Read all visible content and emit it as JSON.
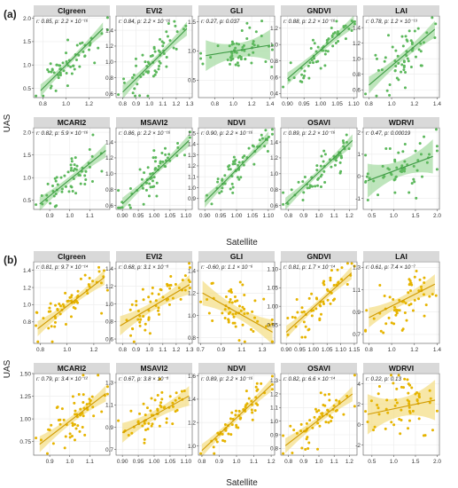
{
  "figure": {
    "panel_a_label": "(a)",
    "panel_b_label": "(b)",
    "y_axis_title": "UAS",
    "x_axis_title": "Satellite",
    "colors": {
      "a_point": "#5cb85c",
      "a_line": "#3f9b45",
      "a_band": "#a8dca6",
      "b_point": "#e6b400",
      "b_line": "#d19a00",
      "b_band": "#f4df8a",
      "strip": "#d9d9d9",
      "grid": "#ebebeb",
      "frame": "#555555"
    }
  },
  "chart_data": [
    {
      "group": "(a)",
      "type": "scatter",
      "color": "#5cb85c",
      "panels": [
        {
          "name": "CIgreen",
          "stats": "r: 0.85, p: 2.2 × 10⁻¹⁶",
          "r": 0.85,
          "xlim": [
            0.72,
            1.38
          ],
          "ylim": [
            0.3,
            2.05
          ],
          "xticks": [
            "0.8",
            "1.0",
            "1.2"
          ],
          "yticks": [
            "0.5",
            "1.0",
            "1.5",
            "2.0"
          ],
          "fit": [
            [
              0.78,
              0.45
            ],
            [
              1.32,
              1.78
            ]
          ],
          "band": 0.06
        },
        {
          "name": "EVI2",
          "stats": "r: 0.84, p: 2.2 × 10⁻¹⁶",
          "r": 0.84,
          "xlim": [
            0.75,
            1.32
          ],
          "ylim": [
            0.55,
            1.58
          ],
          "xticks": [
            "0.8",
            "0.9",
            "1.0",
            "1.1",
            "1.2",
            "1.3"
          ],
          "yticks": [
            "0.6",
            "0.8",
            "1.0",
            "1.2",
            "1.4"
          ],
          "fit": [
            [
              0.8,
              0.62
            ],
            [
              1.28,
              1.42
            ]
          ],
          "band": 0.04
        },
        {
          "name": "GLI",
          "stats": "r: 0.27, p: 0.037",
          "r": 0.27,
          "xlim": [
            0.62,
            1.45
          ],
          "ylim": [
            0.2,
            1.6
          ],
          "xticks": [
            "0.8",
            "1.0",
            "1.2",
            "1.4"
          ],
          "yticks": [
            "0.5",
            "1.0",
            "1.5"
          ],
          "fit": [
            [
              0.7,
              0.92
            ],
            [
              1.4,
              1.1
            ]
          ],
          "band": 0.12
        },
        {
          "name": "GNDVI",
          "stats": "r: 0.88, p: 2.2 × 10⁻¹⁶",
          "r": 0.88,
          "xlim": [
            0.88,
            1.11
          ],
          "ylim": [
            0.35,
            1.35
          ],
          "xticks": [
            "0.90",
            "0.95",
            "1.00",
            "1.05",
            "1.10"
          ],
          "yticks": [
            "0.4",
            "0.6",
            "0.8",
            "1.0",
            "1.2"
          ],
          "fit": [
            [
              0.9,
              0.58
            ],
            [
              1.1,
              1.28
            ]
          ],
          "band": 0.035
        },
        {
          "name": "LAI",
          "stats": "r: 0.78, p: 1.2 × 10⁻¹³",
          "r": 0.78,
          "xlim": [
            0.75,
            1.42
          ],
          "ylim": [
            0.5,
            1.55
          ],
          "xticks": [
            "0.8",
            "1.0",
            "1.2",
            "1.4"
          ],
          "yticks": [
            "0.6",
            "0.8",
            "1.0",
            "1.2",
            "1.4"
          ],
          "fit": [
            [
              0.8,
              0.66
            ],
            [
              1.38,
              1.38
            ]
          ],
          "band": 0.05
        },
        {
          "name": "MCARI2",
          "stats": "r: 0.82, p: 5.9 × 10⁻¹⁶",
          "r": 0.82,
          "xlim": [
            0.82,
            1.2
          ],
          "ylim": [
            0.3,
            2.1
          ],
          "xticks": [
            "0.9",
            "1.0",
            "1.1"
          ],
          "yticks": [
            "0.5",
            "1.0",
            "1.5",
            "2.0"
          ],
          "fit": [
            [
              0.85,
              0.42
            ],
            [
              1.18,
              1.6
            ]
          ],
          "band": 0.07
        },
        {
          "name": "MSAVI2",
          "stats": "r: 0.86, p: 2.2 × 10⁻¹⁶",
          "r": 0.86,
          "xlim": [
            0.88,
            1.12
          ],
          "ylim": [
            0.55,
            1.58
          ],
          "xticks": [
            "0.90",
            "0.95",
            "1.00",
            "1.05",
            "1.10"
          ],
          "yticks": [
            "0.6",
            "0.8",
            "1.0",
            "1.2",
            "1.4"
          ],
          "fit": [
            [
              0.9,
              0.62
            ],
            [
              1.11,
              1.42
            ]
          ],
          "band": 0.035
        },
        {
          "name": "NDVI",
          "stats": "r: 0.90, p: 2.2 × 10⁻¹⁶",
          "r": 0.9,
          "xlim": [
            0.88,
            1.12
          ],
          "ylim": [
            0.8,
            1.55
          ],
          "xticks": [
            "0.90",
            "0.95",
            "1.00",
            "1.05",
            "1.10"
          ],
          "yticks": [
            "0.9",
            "1.0",
            "1.1",
            "1.2",
            "1.3",
            "1.4",
            "1.5"
          ],
          "fit": [
            [
              0.9,
              0.87
            ],
            [
              1.1,
              1.46
            ]
          ],
          "band": 0.025
        },
        {
          "name": "OSAVI",
          "stats": "r: 0.89, p: 2.2 × 10⁻¹⁶",
          "r": 0.89,
          "xlim": [
            0.75,
            1.25
          ],
          "ylim": [
            0.55,
            1.58
          ],
          "xticks": [
            "0.8",
            "0.9",
            "1.0",
            "1.1",
            "1.2"
          ],
          "yticks": [
            "0.6",
            "0.8",
            "1.0",
            "1.2",
            "1.4"
          ],
          "fit": [
            [
              0.78,
              0.62
            ],
            [
              1.22,
              1.42
            ]
          ],
          "band": 0.035
        },
        {
          "name": "WDRVI",
          "stats": "r: 0.47, p: 0.00019",
          "r": 0.47,
          "xlim": [
            0.3,
            2.05
          ],
          "ylim": [
            -1.5,
            2.2
          ],
          "xticks": [
            "0.5",
            "1.0",
            "1.5",
            "2.0"
          ],
          "yticks": [
            "-1",
            "0",
            "1",
            "2"
          ],
          "fit": [
            [
              0.4,
              -0.2
            ],
            [
              1.9,
              0.9
            ]
          ],
          "band": 0.35
        }
      ]
    },
    {
      "group": "(b)",
      "type": "scatter",
      "color": "#e6b400",
      "panels": [
        {
          "name": "CIgreen",
          "stats": "r: 0.81, p: 9.7 × 10⁻¹⁴",
          "r": 0.81,
          "xlim": [
            0.75,
            1.32
          ],
          "ylim": [
            0.55,
            1.5
          ],
          "xticks": [
            "0.8",
            "1.0",
            "1.2"
          ],
          "yticks": [
            "0.8",
            "1.0",
            "1.2",
            "1.4"
          ],
          "fit": [
            [
              0.78,
              0.72
            ],
            [
              1.28,
              1.32
            ]
          ],
          "band": 0.04
        },
        {
          "name": "EVI2",
          "stats": "r: 0.68, p: 3.1 × 10⁻⁸",
          "r": 0.68,
          "xlim": [
            0.75,
            1.32
          ],
          "ylim": [
            0.55,
            1.48
          ],
          "xticks": [
            "0.8",
            "0.9",
            "1.0",
            "1.1",
            "1.2",
            "1.3"
          ],
          "yticks": [
            "0.6",
            "0.8",
            "1.0",
            "1.2",
            "1.4"
          ],
          "fit": [
            [
              0.78,
              0.75
            ],
            [
              1.3,
              1.22
            ]
          ],
          "band": 0.05
        },
        {
          "name": "GLI",
          "stats": "r: -0.60, p: 1.1 × 10⁻⁶",
          "r": -0.6,
          "xlim": [
            0.68,
            1.42
          ],
          "ylim": [
            0.75,
            1.48
          ],
          "xticks": [
            "0.7",
            "0.9",
            "1.1",
            "1.3"
          ],
          "yticks": [
            "0.8",
            "1.0",
            "1.2",
            "1.4"
          ],
          "fit": [
            [
              0.72,
              1.2
            ],
            [
              1.4,
              0.85
            ]
          ],
          "band": 0.05
        },
        {
          "name": "GNDVI",
          "stats": "r: 0.81, p: 1.7 × 10⁻¹⁴",
          "r": 0.81,
          "xlim": [
            0.88,
            1.16
          ],
          "ylim": [
            0.9,
            1.12
          ],
          "xticks": [
            "0.90",
            "0.95",
            "1.00",
            "1.05",
            "1.10",
            "1.15"
          ],
          "yticks": [
            "0.95",
            "1.00",
            "1.05",
            "1.10"
          ],
          "fit": [
            [
              0.9,
              0.93
            ],
            [
              1.14,
              1.09
            ]
          ],
          "band": 0.008
        },
        {
          "name": "LAI",
          "stats": "r: 0.61, p: 7.4 × 10⁻⁷",
          "r": 0.61,
          "xlim": [
            0.75,
            1.42
          ],
          "ylim": [
            0.62,
            1.35
          ],
          "xticks": [
            "0.8",
            "1.0",
            "1.2",
            "1.4"
          ],
          "yticks": [
            "0.7",
            "0.9",
            "1.1",
            "1.3"
          ],
          "fit": [
            [
              0.8,
              0.85
            ],
            [
              1.38,
              1.15
            ]
          ],
          "band": 0.04
        },
        {
          "name": "MCARI2",
          "stats": "r: 0.79, p: 3.4 × 10⁻¹²",
          "r": 0.79,
          "xlim": [
            0.82,
            1.2
          ],
          "ylim": [
            0.6,
            1.5
          ],
          "xticks": [
            "0.9",
            "1.0",
            "1.1"
          ],
          "yticks": [
            "0.75",
            "1.00",
            "1.25",
            "1.50"
          ],
          "fit": [
            [
              0.85,
              0.72
            ],
            [
              1.18,
              1.28
            ]
          ],
          "band": 0.04
        },
        {
          "name": "MSAVI2",
          "stats": "r: 0.67, p: 3.8 × 10⁻⁸",
          "r": 0.67,
          "xlim": [
            0.88,
            1.12
          ],
          "ylim": [
            0.65,
            1.38
          ],
          "xticks": [
            "0.90",
            "0.95",
            "1.00",
            "1.05",
            "1.10"
          ],
          "yticks": [
            "0.7",
            "0.9",
            "1.1",
            "1.3"
          ],
          "fit": [
            [
              0.9,
              0.85
            ],
            [
              1.11,
              1.18
            ]
          ],
          "band": 0.04
        },
        {
          "name": "NDVI",
          "stats": "r: 0.89, p: 2.2 × 10⁻¹⁶",
          "r": 0.89,
          "xlim": [
            0.78,
            1.22
          ],
          "ylim": [
            0.92,
            1.62
          ],
          "xticks": [
            "0.8",
            "0.9",
            "1.0",
            "1.1",
            "1.2"
          ],
          "yticks": [
            "1.0",
            "1.2",
            "1.4",
            "1.6"
          ],
          "fit": [
            [
              0.8,
              0.96
            ],
            [
              1.2,
              1.52
            ]
          ],
          "band": 0.025
        },
        {
          "name": "OSAVI",
          "stats": "r: 0.82, p: 6.6 × 10⁻¹⁴",
          "r": 0.82,
          "xlim": [
            0.75,
            1.25
          ],
          "ylim": [
            0.75,
            1.35
          ],
          "xticks": [
            "0.8",
            "0.9",
            "1.0",
            "1.1",
            "1.2"
          ],
          "yticks": [
            "0.8",
            "0.9",
            "1.0",
            "1.1",
            "1.2",
            "1.3"
          ],
          "fit": [
            [
              0.78,
              0.82
            ],
            [
              1.22,
              1.2
            ]
          ],
          "band": 0.025
        },
        {
          "name": "WDRVI",
          "stats": "r: 0.22, p: 0.13",
          "r": 0.22,
          "xlim": [
            0.3,
            2.05
          ],
          "ylim": [
            -3,
            5
          ],
          "xticks": [
            "0.5",
            "1.0",
            "1.5",
            "2.0"
          ],
          "yticks": [
            "-2",
            "0",
            "2",
            "4"
          ],
          "fit": [
            [
              0.4,
              1.0
            ],
            [
              1.95,
              2.4
            ]
          ],
          "band": 0.9
        }
      ]
    }
  ]
}
